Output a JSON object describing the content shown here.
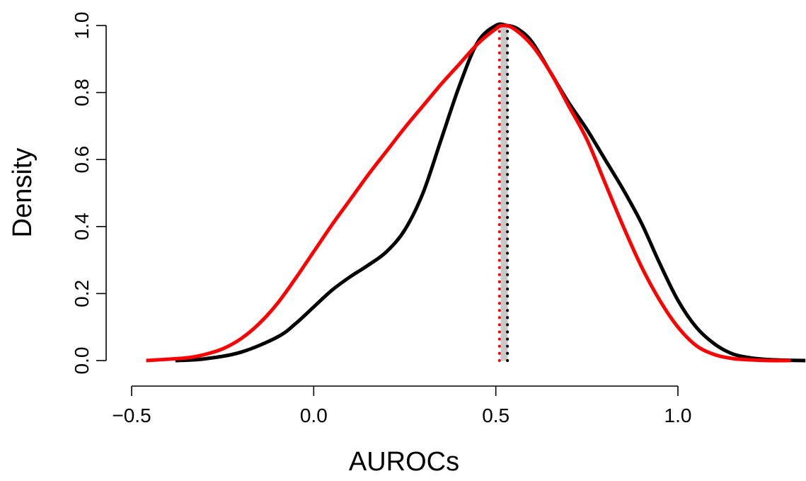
{
  "chart_data": {
    "type": "line",
    "title": "",
    "xlabel": "AUROCs",
    "ylabel": "Density",
    "xlim": [
      -0.5,
      1.35
    ],
    "ylim": [
      0,
      1.0
    ],
    "x_ticks": [
      -0.5,
      0.0,
      0.5,
      1.0
    ],
    "x_tick_labels": [
      "−0.5",
      "0.0",
      "0.5",
      "1.0"
    ],
    "y_ticks": [
      0.0,
      0.2,
      0.4,
      0.6,
      0.8,
      1.0
    ],
    "y_tick_labels": [
      "0.0",
      "0.2",
      "0.4",
      "0.6",
      "0.8",
      "1.0"
    ],
    "grid": false,
    "legend": "none",
    "series": [
      {
        "color": "#000000",
        "style": "solid",
        "x": [
          -0.38,
          -0.3,
          -0.2,
          -0.1,
          -0.05,
          0.0,
          0.05,
          0.1,
          0.15,
          0.2,
          0.25,
          0.3,
          0.35,
          0.4,
          0.45,
          0.5,
          0.53,
          0.56,
          0.6,
          0.65,
          0.7,
          0.75,
          0.8,
          0.85,
          0.9,
          0.95,
          1.0,
          1.05,
          1.1,
          1.15,
          1.2,
          1.25,
          1.3,
          1.35
        ],
        "y": [
          0.0,
          0.005,
          0.025,
          0.07,
          0.11,
          0.16,
          0.21,
          0.25,
          0.285,
          0.325,
          0.39,
          0.5,
          0.66,
          0.82,
          0.95,
          1.0,
          1.0,
          0.99,
          0.95,
          0.86,
          0.77,
          0.69,
          0.6,
          0.51,
          0.41,
          0.29,
          0.18,
          0.1,
          0.05,
          0.02,
          0.008,
          0.003,
          0.001,
          0.0
        ]
      },
      {
        "color": "#ff0000",
        "style": "solid",
        "x": [
          -0.46,
          -0.35,
          -0.3,
          -0.25,
          -0.2,
          -0.15,
          -0.1,
          -0.05,
          0.0,
          0.05,
          0.1,
          0.15,
          0.2,
          0.25,
          0.3,
          0.35,
          0.4,
          0.45,
          0.5,
          0.52,
          0.55,
          0.6,
          0.65,
          0.7,
          0.75,
          0.8,
          0.85,
          0.9,
          0.95,
          1.0,
          1.05,
          1.1,
          1.15,
          1.2,
          1.25,
          1.31
        ],
        "y": [
          0.0,
          0.008,
          0.018,
          0.035,
          0.065,
          0.11,
          0.17,
          0.245,
          0.325,
          0.405,
          0.48,
          0.555,
          0.625,
          0.695,
          0.76,
          0.825,
          0.885,
          0.945,
          0.99,
          1.0,
          0.99,
          0.94,
          0.86,
          0.76,
          0.66,
          0.53,
          0.4,
          0.28,
          0.18,
          0.1,
          0.045,
          0.018,
          0.006,
          0.002,
          0.0,
          0.0
        ]
      }
    ],
    "reference_lines": [
      {
        "x": 0.523,
        "color": "#c8c8c8",
        "style": "solid"
      },
      {
        "x": 0.51,
        "color": "#ff0000",
        "style": "dotted"
      },
      {
        "x": 0.532,
        "color": "#000000",
        "style": "dotted"
      }
    ]
  }
}
